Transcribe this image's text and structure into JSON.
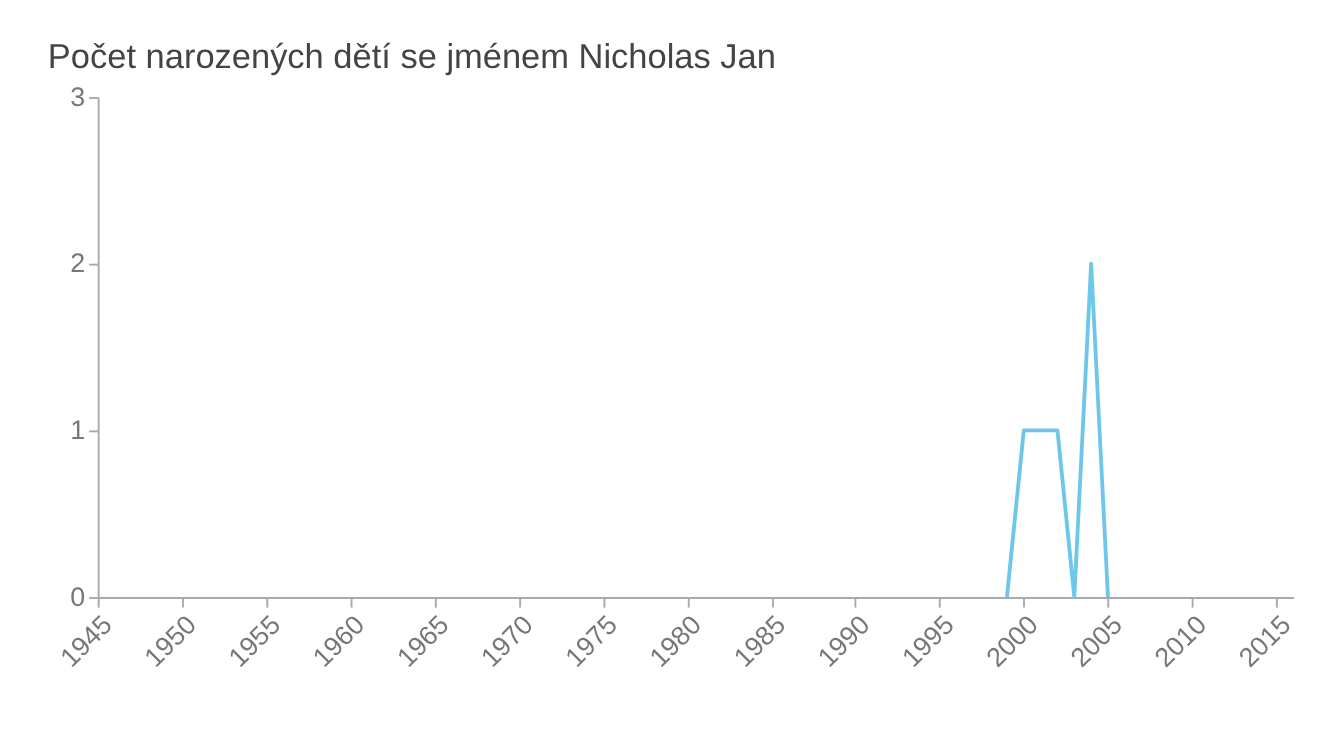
{
  "chart_data": {
    "type": "line",
    "title": "Počet narozených dětí se jménem Nicholas Jan",
    "x": [
      1999,
      2000,
      2002,
      2003,
      2004,
      2005
    ],
    "series": [
      {
        "color": "#6ec6e8",
        "values": [
          0,
          1,
          1,
          0,
          2,
          0
        ]
      }
    ],
    "xlim": [
      1945,
      2016
    ],
    "xticks": [
      1945,
      1950,
      1955,
      1960,
      1965,
      1970,
      1975,
      1980,
      1985,
      1990,
      1995,
      2000,
      2005,
      2010,
      2015
    ],
    "ylim": [
      0,
      3
    ],
    "yticks": [
      0,
      1,
      2,
      3
    ],
    "grid": false,
    "marker": "none",
    "line_style": "solid"
  }
}
